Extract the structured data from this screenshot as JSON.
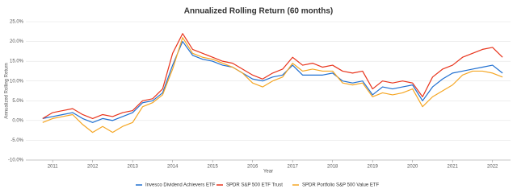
{
  "chart_data": {
    "type": "line",
    "title": "Annualized Rolling Return (60 months)",
    "x_label": "Year",
    "y_label": "Annualized Rolling Return",
    "x": [
      2010.75,
      2011,
      2011.25,
      2011.5,
      2011.75,
      2012,
      2012.25,
      2012.5,
      2012.75,
      2013,
      2013.25,
      2013.5,
      2013.75,
      2014,
      2014.25,
      2014.5,
      2014.75,
      2015,
      2015.25,
      2015.5,
      2015.75,
      2016,
      2016.25,
      2016.5,
      2016.75,
      2017,
      2017.25,
      2017.5,
      2017.75,
      2018,
      2018.25,
      2018.5,
      2018.75,
      2019,
      2019.25,
      2019.5,
      2019.75,
      2020,
      2020.25,
      2020.5,
      2020.75,
      2021,
      2021.25,
      2021.5,
      2021.75,
      2022,
      2022.25
    ],
    "series": [
      {
        "name": "Invesco Dividend Achievers ETF",
        "color": "#1f6fd1",
        "values": [
          0.5,
          1,
          1.5,
          2,
          0.5,
          -0.5,
          0.5,
          0,
          1,
          2,
          4.5,
          5,
          7,
          14,
          20,
          16.5,
          15.5,
          15,
          14,
          13.5,
          12,
          10.5,
          10,
          11,
          11.5,
          14,
          11.5,
          11.5,
          11.5,
          12,
          10,
          9.5,
          10,
          6.5,
          8.5,
          8,
          8.5,
          9,
          5,
          8.5,
          10.5,
          12,
          12.5,
          13,
          13.5,
          14,
          12
        ]
      },
      {
        "name": "SPDR S&P 500 ETF Trust",
        "color": "#e8341c",
        "values": [
          0.5,
          2,
          2.5,
          3,
          1.5,
          0.5,
          1.5,
          1,
          2,
          2.5,
          5,
          5.5,
          8,
          17,
          22,
          18,
          17,
          16,
          15,
          14.5,
          13,
          11.5,
          10.5,
          12,
          13,
          16,
          14,
          14.5,
          13.5,
          14,
          12.5,
          12,
          12.5,
          8,
          10,
          9.5,
          10,
          9.5,
          6,
          11,
          13,
          14,
          16,
          17,
          18,
          18.5,
          16
        ]
      },
      {
        "name": "SPDR Portfolio S&P 500 Value ETF",
        "color": "#f5a623",
        "values": [
          -0.5,
          0.5,
          1,
          1.5,
          -1,
          -3,
          -1.5,
          -3,
          -1.5,
          -0.5,
          3.5,
          4.5,
          6.5,
          13,
          21,
          17,
          16,
          15.5,
          14.5,
          13.5,
          12,
          9.5,
          8.5,
          10,
          11,
          14.5,
          12.5,
          13,
          12.5,
          12.5,
          9.5,
          9,
          9.5,
          6,
          7,
          6.5,
          7,
          8,
          3.5,
          6,
          7.5,
          9,
          11.5,
          12.5,
          12.5,
          12,
          11
        ]
      }
    ],
    "xlim": [
      2010.33,
      2022.45
    ],
    "xticks": [
      2011,
      2012,
      2013,
      2014,
      2015,
      2016,
      2017,
      2018,
      2019,
      2020,
      2021,
      2022
    ],
    "ylim": [
      -10,
      25
    ],
    "yticks": [
      {
        "value": -10,
        "label": "-10.0%"
      },
      {
        "value": -5,
        "label": "-5.0%"
      },
      {
        "value": 0,
        "label": "0.0%"
      },
      {
        "value": 5,
        "label": "5.0%"
      },
      {
        "value": 10,
        "label": "10.0%"
      },
      {
        "value": 15,
        "label": "15.0%"
      },
      {
        "value": 20,
        "label": "20.0%"
      },
      {
        "value": 25,
        "label": "25.0%"
      }
    ],
    "grid": true
  }
}
